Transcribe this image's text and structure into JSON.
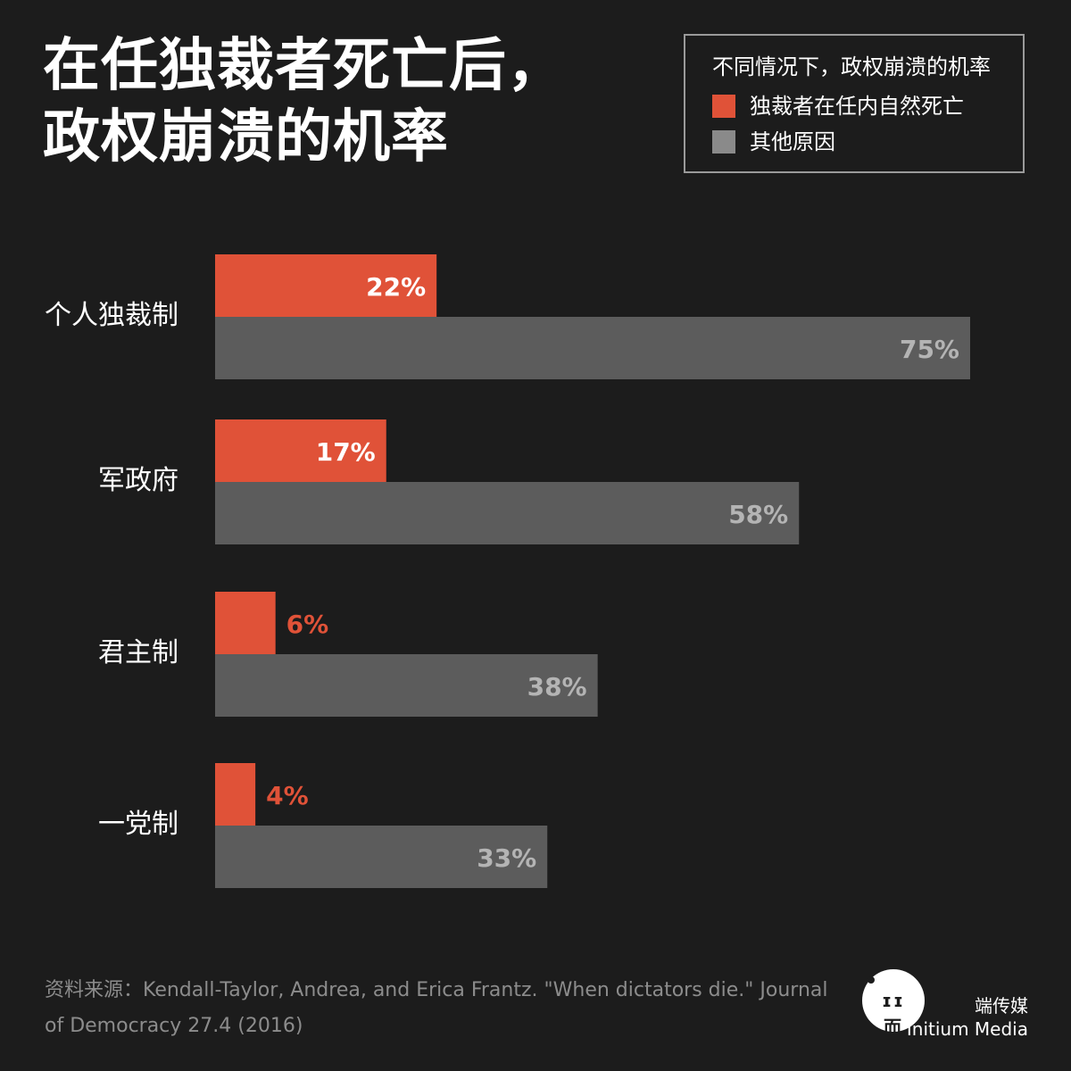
{
  "title": {
    "line1": "在任独裁者死亡后，",
    "line2": "政权崩溃的机率"
  },
  "legend": {
    "title": "不同情况下，政权崩溃的机率",
    "items": [
      {
        "label": "独裁者在任内自然死亡",
        "color": "#e05238"
      },
      {
        "label": "其他原因",
        "color": "#8a8a8a"
      }
    ]
  },
  "chart_data": {
    "type": "bar",
    "orientation": "horizontal",
    "title": "在任独裁者死亡后，政权崩溃的机率",
    "categories": [
      "个人独裁制",
      "军政府",
      "君主制",
      "一党制"
    ],
    "series": [
      {
        "name": "独裁者在任内自然死亡",
        "color": "#e05238",
        "values": [
          22,
          17,
          6,
          4
        ]
      },
      {
        "name": "其他原因",
        "color": "#5c5c5c",
        "values": [
          75,
          58,
          38,
          33
        ]
      }
    ],
    "value_suffix": "%",
    "xlim": [
      0,
      100
    ],
    "grid": false,
    "legend_position": "top-right"
  },
  "footer": {
    "source": "资料来源：Kendall-Taylor, Andrea, and Erica Frantz. \"When dictators die.\" Journal of Democracy 27.4 (2016)",
    "logo_mark": "ɪɪ 而",
    "brand_cn": "端传媒",
    "brand_en": "Initium Media"
  }
}
